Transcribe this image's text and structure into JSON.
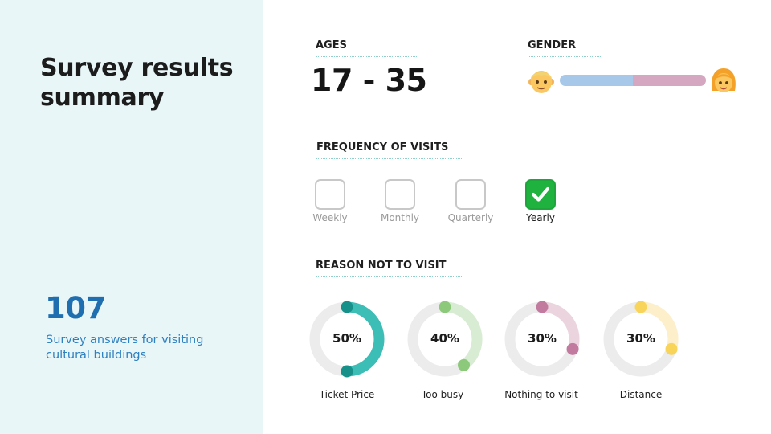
{
  "title": "Survey results summary",
  "total": {
    "count": "107",
    "description": "Survey answers for visiting cultural buildings"
  },
  "ages": {
    "heading": "AGES",
    "value": "17 - 35"
  },
  "gender": {
    "heading": "GENDER",
    "male_icon": "man-face-icon",
    "female_icon": "woman-face-icon",
    "male_share": 0.5,
    "colors": {
      "male": "#a7c8e9",
      "female": "#d6a7c1"
    }
  },
  "frequency": {
    "heading": "FREQUENCY OF VISITS",
    "options": [
      {
        "label": "Weekly",
        "checked": false
      },
      {
        "label": "Monthly",
        "checked": false
      },
      {
        "label": "Quarterly",
        "checked": false
      },
      {
        "label": "Yearly",
        "checked": true
      }
    ]
  },
  "reasons": {
    "heading": "REASON NOT TO VISIT",
    "items": [
      {
        "label": "Ticket Price",
        "value": "50%",
        "fraction": 0.5,
        "color": "#3cbdb5",
        "dot": "#17908a"
      },
      {
        "label": "Too busy",
        "value": "40%",
        "fraction": 0.4,
        "color": "#d8ecd4",
        "dot": "#8cc97a"
      },
      {
        "label": "Nothing to visit",
        "value": "30%",
        "fraction": 0.3,
        "color": "#ecd4df",
        "dot": "#c27a9f"
      },
      {
        "label": "Distance",
        "value": "30%",
        "fraction": 0.3,
        "color": "#fdefc9",
        "dot": "#f9d45a"
      }
    ]
  },
  "colors": {
    "accent": "#1f6fb0",
    "panel": "#e9f6f8",
    "divider": "#8fcfcc",
    "track": "#ececec"
  }
}
